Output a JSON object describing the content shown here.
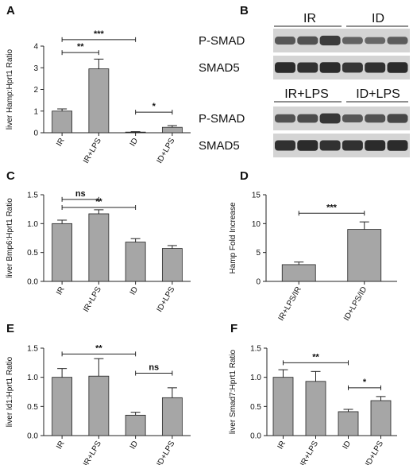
{
  "panels": {
    "A": {
      "letter": "A"
    },
    "B": {
      "letter": "B"
    },
    "C": {
      "letter": "C"
    },
    "D": {
      "letter": "D"
    },
    "E": {
      "letter": "E"
    },
    "F": {
      "letter": "F"
    }
  },
  "blot": {
    "top": {
      "groups": [
        "IR",
        "ID"
      ],
      "rows": [
        {
          "label": "P-SMAD",
          "intensities": [
            0.55,
            0.6,
            0.8,
            0.45,
            0.4,
            0.5
          ]
        },
        {
          "label": "SMAD5",
          "intensities": [
            0.95,
            0.9,
            0.95,
            0.85,
            0.9,
            0.95
          ]
        }
      ]
    },
    "bottom": {
      "groups": [
        "IR+LPS",
        "ID+LPS"
      ],
      "rows": [
        {
          "label": "P-SMAD",
          "intensities": [
            0.6,
            0.65,
            0.85,
            0.55,
            0.6,
            0.7
          ]
        },
        {
          "label": "SMAD5",
          "intensities": [
            0.9,
            0.95,
            0.9,
            0.9,
            0.95,
            0.95
          ]
        }
      ]
    }
  },
  "colors": {
    "bar": "#a6a6a6",
    "axis": "#222222",
    "band": "#1c1c1c",
    "blot_bg": "#d4d4d4"
  },
  "chart_data": [
    {
      "panel": "A",
      "type": "bar",
      "ylabel": "liver Hamp:Hprt1 Ratio",
      "categories": [
        "IR",
        "IR+LPS",
        "ID",
        "ID+LPS"
      ],
      "values": [
        1.0,
        2.95,
        0.03,
        0.25
      ],
      "errors": [
        0.1,
        0.45,
        0.02,
        0.08
      ],
      "ylim": [
        0,
        4
      ],
      "yticks": [
        0,
        1,
        2,
        3,
        4
      ],
      "decimals": 0,
      "significance": [
        {
          "from": 0,
          "to": 2,
          "label": "***",
          "y": 4.3
        },
        {
          "from": 0,
          "to": 1,
          "label": "**",
          "y": 3.7
        },
        {
          "from": 2,
          "to": 3,
          "label": "*",
          "y": 0.95
        }
      ]
    },
    {
      "panel": "C",
      "type": "bar",
      "ylabel": "liver Bmp6:Hprt1 Ratio",
      "categories": [
        "IR",
        "IR+LPS",
        "ID",
        "ID+LPS"
      ],
      "values": [
        1.0,
        1.17,
        0.68,
        0.57
      ],
      "errors": [
        0.06,
        0.07,
        0.06,
        0.05
      ],
      "ylim": [
        0,
        1.5
      ],
      "yticks": [
        0,
        0.5,
        1.0,
        1.5
      ],
      "decimals": 1,
      "significance": [
        {
          "from": 0,
          "to": 1,
          "label": "ns",
          "y": 1.42
        },
        {
          "from": 0,
          "to": 2,
          "label": "**",
          "y": 1.28
        }
      ]
    },
    {
      "panel": "D",
      "type": "bar",
      "ylabel": "Hamp Fold Increase",
      "categories": [
        "IR+LPS/IR",
        "ID+LPS/ID"
      ],
      "values": [
        2.9,
        9.0
      ],
      "errors": [
        0.45,
        1.3
      ],
      "ylim": [
        0,
        15
      ],
      "yticks": [
        0,
        5,
        10,
        15
      ],
      "decimals": 0,
      "significance": [
        {
          "from": 0,
          "to": 1,
          "label": "***",
          "y": 11.8
        }
      ]
    },
    {
      "panel": "E",
      "type": "bar",
      "ylabel": "liver Id1:Hprt1 Ratio",
      "categories": [
        "IR",
        "IR+LPS",
        "ID",
        "ID+LPS"
      ],
      "values": [
        1.0,
        1.02,
        0.35,
        0.65
      ],
      "errors": [
        0.15,
        0.3,
        0.05,
        0.17
      ],
      "ylim": [
        0,
        1.5
      ],
      "yticks": [
        0,
        0.5,
        1.0,
        1.5
      ],
      "decimals": 1,
      "significance": [
        {
          "from": 0,
          "to": 2,
          "label": "**",
          "y": 1.4
        },
        {
          "from": 2,
          "to": 3,
          "label": "ns",
          "y": 1.07
        }
      ]
    },
    {
      "panel": "F",
      "type": "bar",
      "ylabel": "liver Smad7:Hprt1 Ratio",
      "categories": [
        "IR",
        "IR+LPS",
        "ID",
        "ID+LPS"
      ],
      "values": [
        1.0,
        0.93,
        0.41,
        0.6
      ],
      "errors": [
        0.13,
        0.17,
        0.04,
        0.07
      ],
      "ylim": [
        0,
        1.5
      ],
      "yticks": [
        0,
        0.5,
        1.0,
        1.5
      ],
      "decimals": 1,
      "significance": [
        {
          "from": 0,
          "to": 2,
          "label": "**",
          "y": 1.25
        },
        {
          "from": 2,
          "to": 3,
          "label": "*",
          "y": 0.82
        }
      ]
    }
  ]
}
